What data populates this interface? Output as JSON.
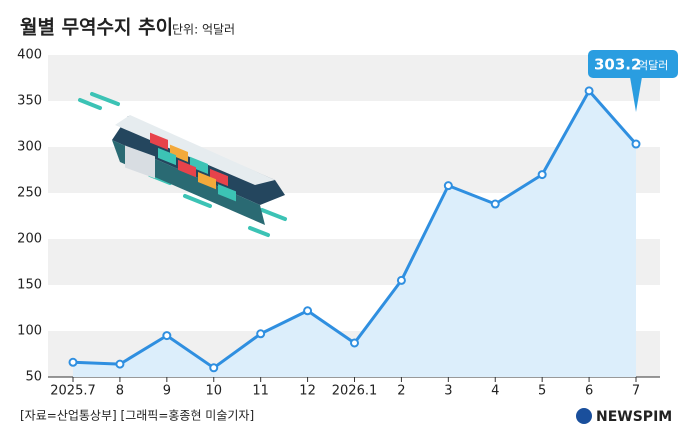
{
  "chart_data": {
    "type": "line",
    "title": "월별 무역수지 추이",
    "subtitle": "단위: 억달러",
    "categories": [
      "2025.7",
      "8",
      "9",
      "10",
      "11",
      "12",
      "2026.1",
      "2",
      "3",
      "4",
      "5",
      "6",
      "7"
    ],
    "values": [
      66,
      64,
      95,
      60,
      97,
      122,
      87,
      155,
      258,
      238,
      270,
      361,
      303.2
    ],
    "color": "#2f8fe0",
    "area_color": "#dceefb",
    "ylim": [
      50,
      400
    ],
    "yticks": [
      50,
      100,
      150,
      200,
      250,
      300,
      350,
      400
    ],
    "callout": {
      "value_index": 12,
      "unit": "억달러"
    },
    "source": "[자료=산업통상부] [그래픽=홍종현 미술기자]",
    "logo": "NEWSPIM"
  }
}
